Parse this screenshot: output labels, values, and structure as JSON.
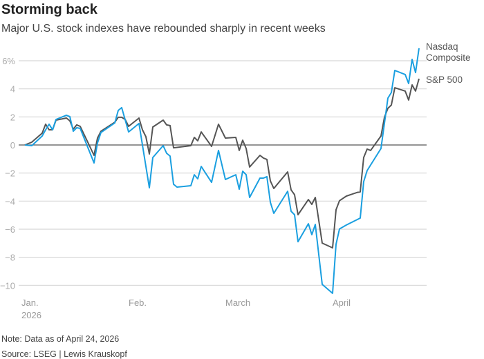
{
  "title": "Storming back",
  "subtitle": "Major U.S. stock indexes have rebounded sharply in recent weeks",
  "note": "Note: Data as of April 24, 2026",
  "source": "Source: LSEG | Lewis Krauskopf",
  "chart_data": {
    "type": "line",
    "title": "Storming back",
    "ylim": [
      -10,
      6
    ],
    "yticks": [
      6,
      4,
      2,
      0,
      -2,
      -4,
      -6,
      -8,
      -10
    ],
    "ytick_labels": [
      "6%",
      "4",
      "2",
      "0",
      "−2",
      "−4",
      "−6",
      "−8",
      "−10"
    ],
    "xticks": [
      {
        "date": "2026-01-01",
        "label": "Jan.",
        "label2": "2026"
      },
      {
        "date": "2026-02-01",
        "label": "Feb."
      },
      {
        "date": "2026-03-01",
        "label": "March"
      },
      {
        "date": "2026-04-01",
        "label": "April"
      }
    ],
    "grid": true,
    "legend": "direct labels at line ends (right)",
    "series": [
      {
        "name": "Nasdaq Composite",
        "color": "#1a9fe0",
        "points": [
          [
            "2025-12-31",
            0
          ],
          [
            "2026-01-02",
            -0.05
          ],
          [
            "2026-01-05",
            0.64
          ],
          [
            "2026-01-06",
            1.08
          ],
          [
            "2026-01-07",
            1.48
          ],
          [
            "2026-01-08",
            1.08
          ],
          [
            "2026-01-09",
            1.82
          ],
          [
            "2026-01-12",
            2.12
          ],
          [
            "2026-01-13",
            2.02
          ],
          [
            "2026-01-14",
            0.98
          ],
          [
            "2026-01-15",
            1.23
          ],
          [
            "2026-01-16",
            1.18
          ],
          [
            "2026-01-20",
            -1.28
          ],
          [
            "2026-01-21",
            0.15
          ],
          [
            "2026-01-22",
            0.89
          ],
          [
            "2026-01-26",
            1.57
          ],
          [
            "2026-01-27",
            2.46
          ],
          [
            "2026-01-28",
            2.66
          ],
          [
            "2026-01-30",
            0.93
          ],
          [
            "2026-02-02",
            1.53
          ],
          [
            "2026-02-05",
            -3.05
          ],
          [
            "2026-02-06",
            -0.89
          ],
          [
            "2026-02-09",
            -0.05
          ],
          [
            "2026-02-10",
            -0.59
          ],
          [
            "2026-02-11",
            -0.79
          ],
          [
            "2026-02-12",
            -2.8
          ],
          [
            "2026-02-13",
            -3.0
          ],
          [
            "2026-02-17",
            -2.9
          ],
          [
            "2026-02-18",
            -2.12
          ],
          [
            "2026-02-19",
            -2.41
          ],
          [
            "2026-02-20",
            -1.53
          ],
          [
            "2026-02-23",
            -2.66
          ],
          [
            "2026-02-25",
            -0.39
          ],
          [
            "2026-02-27",
            -2.46
          ],
          [
            "2026-03-02",
            -2.12
          ],
          [
            "2026-03-03",
            -3.15
          ],
          [
            "2026-03-04",
            -1.87
          ],
          [
            "2026-03-05",
            -2.12
          ],
          [
            "2026-03-06",
            -3.74
          ],
          [
            "2026-03-09",
            -2.36
          ],
          [
            "2026-03-10",
            -2.36
          ],
          [
            "2026-03-11",
            -2.26
          ],
          [
            "2026-03-12",
            -4.08
          ],
          [
            "2026-03-13",
            -4.87
          ],
          [
            "2026-03-17",
            -3.3
          ],
          [
            "2026-03-18",
            -4.72
          ],
          [
            "2026-03-19",
            -4.97
          ],
          [
            "2026-03-20",
            -6.89
          ],
          [
            "2026-03-23",
            -5.61
          ],
          [
            "2026-03-24",
            -6.39
          ],
          [
            "2026-03-25",
            -5.66
          ],
          [
            "2026-03-27",
            -9.93
          ],
          [
            "2026-03-30",
            -10.57
          ],
          [
            "2026-03-31",
            -7.08
          ],
          [
            "2026-04-01",
            -5.98
          ],
          [
            "2026-04-03",
            -5.7
          ],
          [
            "2026-04-07",
            -5.21
          ],
          [
            "2026-04-08",
            -2.61
          ],
          [
            "2026-04-09",
            -1.82
          ],
          [
            "2026-04-13",
            -0.25
          ],
          [
            "2026-04-15",
            3.34
          ],
          [
            "2026-04-16",
            3.74
          ],
          [
            "2026-04-17",
            5.31
          ],
          [
            "2026-04-20",
            5.02
          ],
          [
            "2026-04-21",
            4.38
          ],
          [
            "2026-04-22",
            6.1
          ],
          [
            "2026-04-23",
            5.16
          ],
          [
            "2026-04-24",
            6.89
          ]
        ]
      },
      {
        "name": "S&P 500",
        "color": "#555555",
        "points": [
          [
            "2025-12-31",
            0
          ],
          [
            "2026-01-02",
            0.2
          ],
          [
            "2026-01-05",
            0.84
          ],
          [
            "2026-01-06",
            1.48
          ],
          [
            "2026-01-07",
            1.08
          ],
          [
            "2026-01-08",
            1.08
          ],
          [
            "2026-01-09",
            1.77
          ],
          [
            "2026-01-12",
            1.92
          ],
          [
            "2026-01-13",
            1.72
          ],
          [
            "2026-01-14",
            1.13
          ],
          [
            "2026-01-15",
            1.43
          ],
          [
            "2026-01-16",
            1.33
          ],
          [
            "2026-01-20",
            -0.74
          ],
          [
            "2026-01-21",
            0.49
          ],
          [
            "2026-01-22",
            0.98
          ],
          [
            "2026-01-26",
            1.62
          ],
          [
            "2026-01-27",
            1.97
          ],
          [
            "2026-01-28",
            1.97
          ],
          [
            "2026-01-29",
            1.82
          ],
          [
            "2026-01-30",
            1.33
          ],
          [
            "2026-02-02",
            1.92
          ],
          [
            "2026-02-03",
            1.08
          ],
          [
            "2026-02-04",
            0.59
          ],
          [
            "2026-02-05",
            -0.64
          ],
          [
            "2026-02-06",
            1.28
          ],
          [
            "2026-02-09",
            1.77
          ],
          [
            "2026-02-10",
            1.43
          ],
          [
            "2026-02-11",
            1.38
          ],
          [
            "2026-02-12",
            -0.2
          ],
          [
            "2026-02-17",
            -0.05
          ],
          [
            "2026-02-18",
            0.54
          ],
          [
            "2026-02-19",
            0.3
          ],
          [
            "2026-02-20",
            0.93
          ],
          [
            "2026-02-23",
            -0.1
          ],
          [
            "2026-02-25",
            1.48
          ],
          [
            "2026-02-27",
            0.49
          ],
          [
            "2026-03-02",
            0.54
          ],
          [
            "2026-03-03",
            -0.39
          ],
          [
            "2026-03-04",
            0.34
          ],
          [
            "2026-03-05",
            -0.25
          ],
          [
            "2026-03-06",
            -1.57
          ],
          [
            "2026-03-09",
            -0.74
          ],
          [
            "2026-03-10",
            -0.93
          ],
          [
            "2026-03-11",
            -1.03
          ],
          [
            "2026-03-12",
            -2.56
          ],
          [
            "2026-03-13",
            -3.1
          ],
          [
            "2026-03-17",
            -1.92
          ],
          [
            "2026-03-18",
            -3.2
          ],
          [
            "2026-03-19",
            -3.54
          ],
          [
            "2026-03-20",
            -4.97
          ],
          [
            "2026-03-23",
            -3.89
          ],
          [
            "2026-03-24",
            -4.23
          ],
          [
            "2026-03-25",
            -3.74
          ],
          [
            "2026-03-27",
            -6.99
          ],
          [
            "2026-03-30",
            -7.33
          ],
          [
            "2026-03-31",
            -4.62
          ],
          [
            "2026-04-01",
            -3.97
          ],
          [
            "2026-04-03",
            -3.64
          ],
          [
            "2026-04-06",
            -3.39
          ],
          [
            "2026-04-07",
            -3.34
          ],
          [
            "2026-04-08",
            -0.89
          ],
          [
            "2026-04-09",
            -0.29
          ],
          [
            "2026-04-10",
            -0.39
          ],
          [
            "2026-04-13",
            0.64
          ],
          [
            "2026-04-14",
            1.97
          ],
          [
            "2026-04-15",
            2.61
          ],
          [
            "2026-04-16",
            2.85
          ],
          [
            "2026-04-17",
            4.08
          ],
          [
            "2026-04-20",
            3.84
          ],
          [
            "2026-04-21",
            3.2
          ],
          [
            "2026-04-22",
            4.28
          ],
          [
            "2026-04-23",
            3.84
          ],
          [
            "2026-04-24",
            4.72
          ]
        ]
      }
    ],
    "series_labels": [
      [
        "Nasdaq",
        "Composite"
      ],
      [
        "S&P 500"
      ]
    ]
  }
}
